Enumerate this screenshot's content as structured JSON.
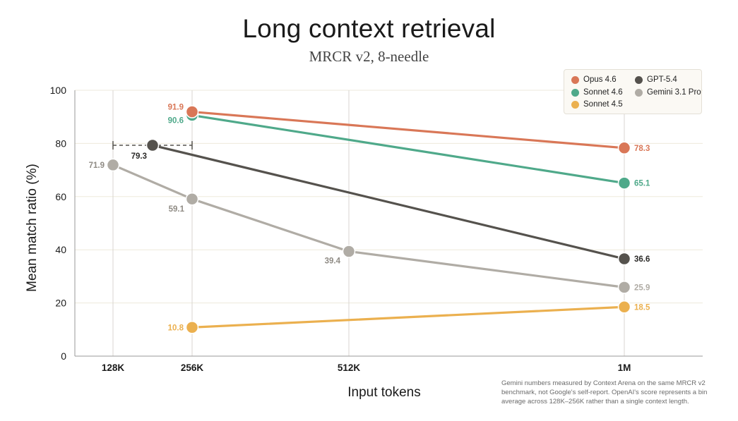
{
  "chart_data": {
    "type": "line",
    "title": "Long context retrieval",
    "subtitle": "MRCR v2, 8-needle",
    "xlabel": "Input tokens",
    "ylabel": "Mean match ratio (%)",
    "ylim": [
      0,
      100
    ],
    "yticks": [
      "0",
      "20",
      "40",
      "60",
      "80",
      "100"
    ],
    "categories": [
      "128K",
      "256K",
      "512K",
      "1M"
    ],
    "series": [
      {
        "name": "Opus 4.6",
        "color": "#D97757",
        "points": [
          {
            "x": "256K",
            "y": 91.9,
            "label": "91.9"
          },
          {
            "x": "1M",
            "y": 78.3,
            "label": "78.3"
          }
        ]
      },
      {
        "name": "Sonnet 4.6",
        "color": "#4FA98A",
        "points": [
          {
            "x": "256K",
            "y": 90.6,
            "label": "90.6"
          },
          {
            "x": "1M",
            "y": 65.1,
            "label": "65.1"
          }
        ]
      },
      {
        "name": "Sonnet 4.5",
        "color": "#EBB04F",
        "points": [
          {
            "x": "256K",
            "y": 10.8,
            "label": "10.8"
          },
          {
            "x": "1M",
            "y": 18.5,
            "label": "18.5"
          }
        ]
      },
      {
        "name": "GPT-5.4",
        "color": "#55524D",
        "points": [
          {
            "x": "128K–256K",
            "y": 79.3,
            "label": "79.3"
          },
          {
            "x": "1M",
            "y": 36.6,
            "label": "36.6"
          }
        ],
        "bin_range": [
          "128K",
          "256K"
        ]
      },
      {
        "name": "Gemini 3.1 Pro",
        "color": "#B0ACA5",
        "points": [
          {
            "x": "128K",
            "y": 71.9,
            "label": "71.9"
          },
          {
            "x": "256K",
            "y": 59.1,
            "label": "59.1"
          },
          {
            "x": "512K",
            "y": 39.4,
            "label": "39.4"
          },
          {
            "x": "1M",
            "y": 25.9,
            "label": "25.9"
          }
        ]
      }
    ],
    "legend": [
      "Opus 4.6",
      "GPT-5.4",
      "Sonnet 4.6",
      "Gemini 3.1 Pro",
      "Sonnet 4.5"
    ],
    "legend_position": "top-right",
    "footnote": "Gemini numbers measured by Context Arena on the same MRCR v2 benchmark, not Google's self-report. OpenAI's score represents a bin average across 128K–256K rather than a single context length."
  }
}
